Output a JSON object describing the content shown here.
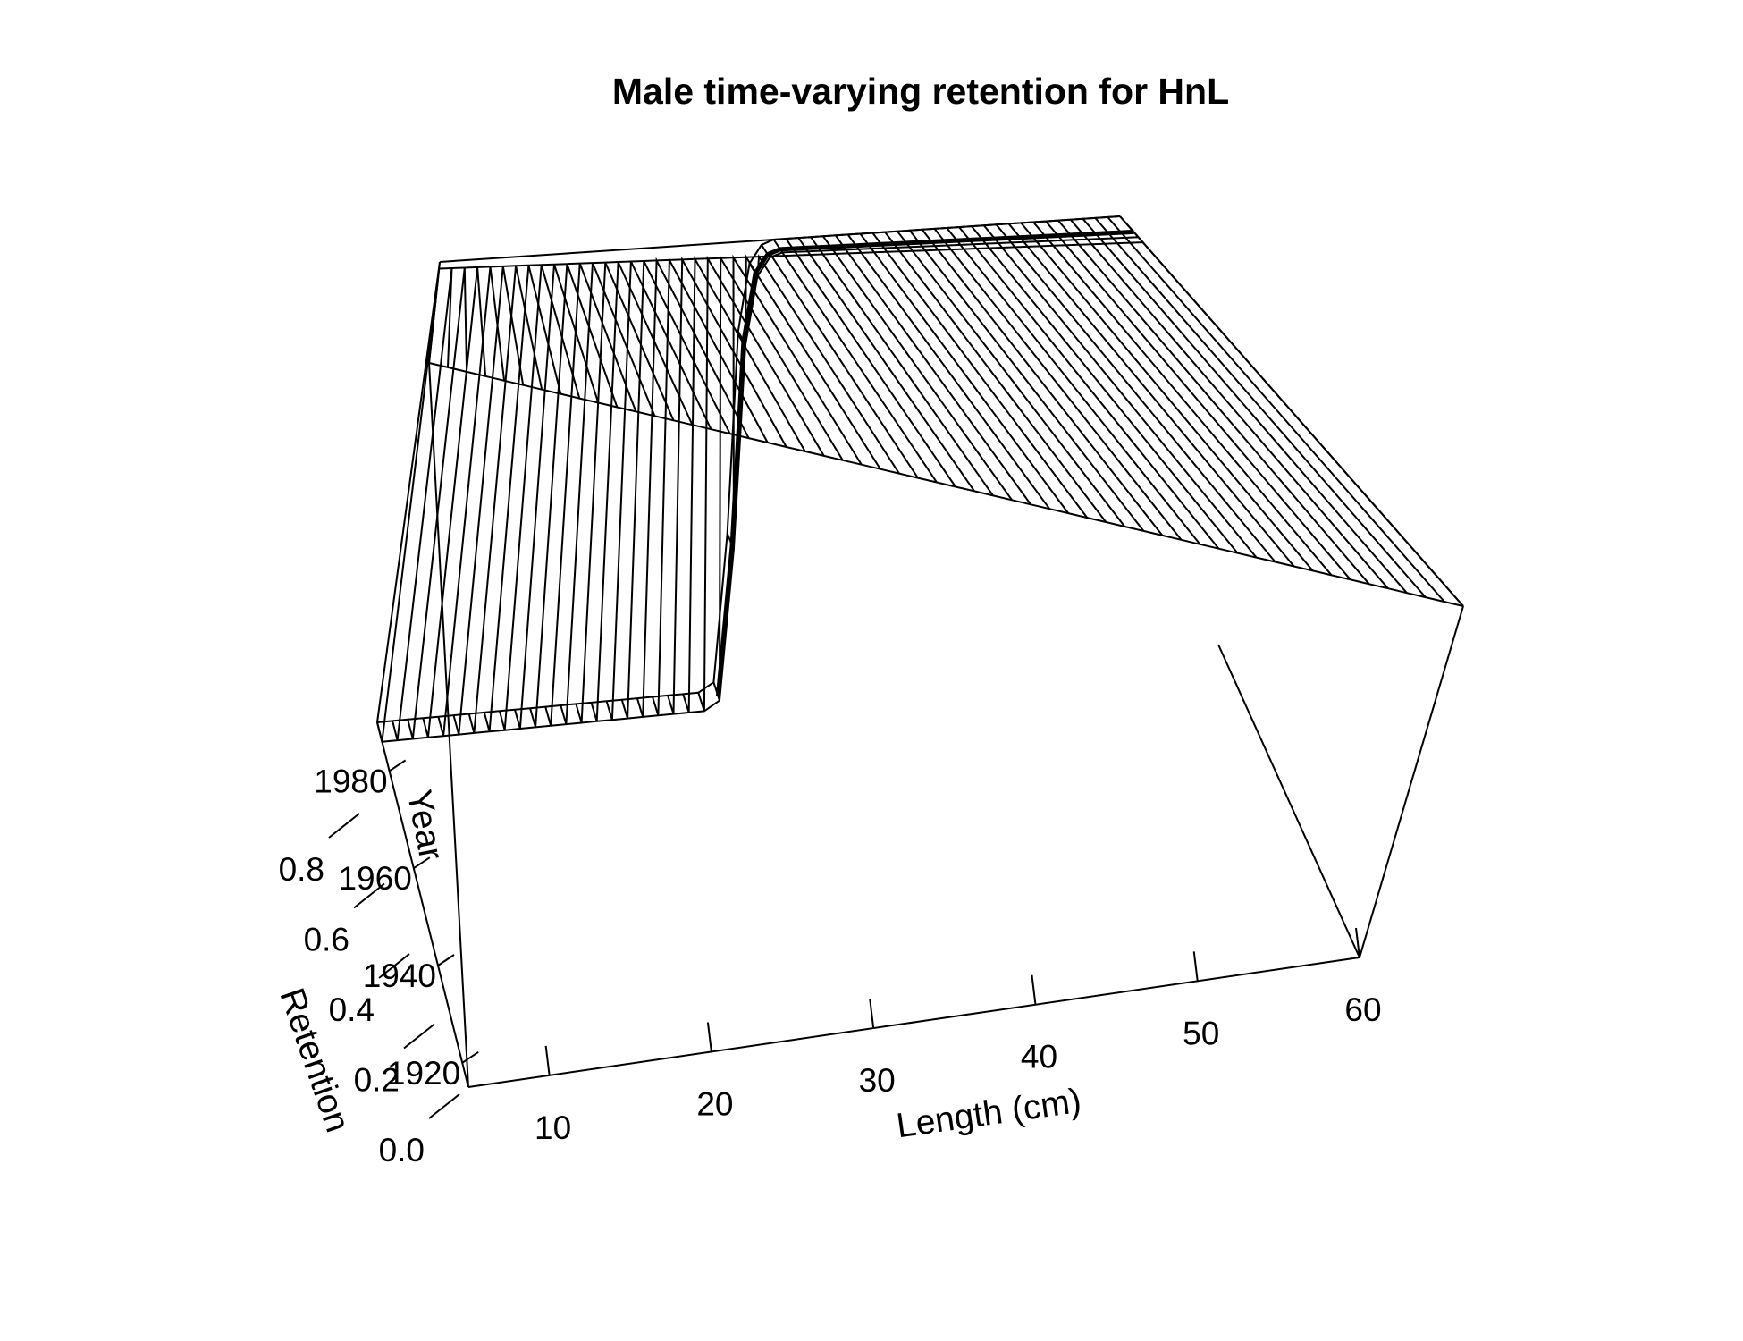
{
  "chart_data": {
    "type": "surface",
    "title": "Male time-varying retention for HnL",
    "xlabel": "Length (cm)",
    "ylabel": "Year",
    "zlabel": "Retention",
    "x_ticks": [
      "10",
      "20",
      "30",
      "40",
      "50",
      "60"
    ],
    "y_ticks": [
      "1920",
      "1940",
      "1960",
      "1980"
    ],
    "z_ticks": [
      "0.0",
      "0.2",
      "0.4",
      "0.6",
      "0.8"
    ],
    "xlim": [
      5,
      60
    ],
    "ylim": [
      1915,
      1990
    ],
    "zlim": [
      0,
      1
    ],
    "surface": {
      "x": [
        5,
        6,
        7,
        8,
        9,
        10,
        11,
        12,
        13,
        14,
        15,
        16,
        17,
        18,
        19,
        20,
        21,
        22,
        23,
        24,
        25,
        26,
        27,
        28,
        29,
        30,
        31,
        32,
        33,
        34,
        35,
        36,
        37,
        38,
        39,
        40,
        41,
        42,
        43,
        44,
        45,
        46,
        47,
        48,
        49,
        50,
        51,
        52,
        53,
        54,
        55,
        56,
        57,
        58,
        59,
        60
      ],
      "year_breaks": [
        1915,
        1985,
        1986,
        1990
      ],
      "retention_before_1985": 1.0,
      "retention_from_1986": [
        0,
        0,
        0,
        0,
        0,
        0,
        0,
        0,
        0,
        0,
        0,
        0,
        0,
        0,
        0,
        0,
        0,
        0,
        0,
        0,
        0,
        0,
        0.02,
        0.35,
        0.8,
        0.95,
        0.99,
        1,
        1,
        1,
        1,
        1,
        1,
        1,
        1,
        1,
        1,
        1,
        1,
        1,
        1,
        1,
        1,
        1,
        1,
        1,
        1,
        1,
        1,
        1,
        1,
        1,
        1,
        1,
        1,
        1
      ]
    },
    "highlight_year": 1987,
    "grid": false,
    "colors": {
      "lines": "#000000",
      "background": "#ffffff"
    }
  }
}
